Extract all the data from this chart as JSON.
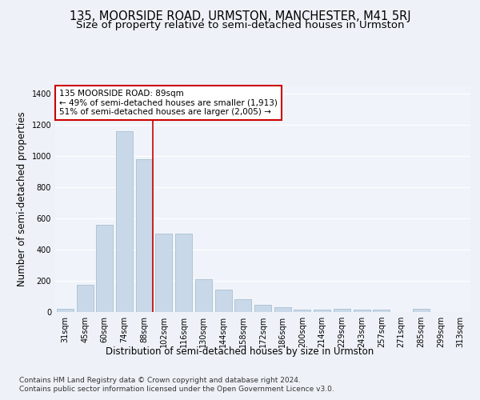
{
  "title": "135, MOORSIDE ROAD, URMSTON, MANCHESTER, M41 5RJ",
  "subtitle": "Size of property relative to semi-detached houses in Urmston",
  "xlabel": "Distribution of semi-detached houses by size in Urmston",
  "ylabel": "Number of semi-detached properties",
  "footer_line1": "Contains HM Land Registry data © Crown copyright and database right 2024.",
  "footer_line2": "Contains public sector information licensed under the Open Government Licence v3.0.",
  "categories": [
    "31sqm",
    "45sqm",
    "60sqm",
    "74sqm",
    "88sqm",
    "102sqm",
    "116sqm",
    "130sqm",
    "144sqm",
    "158sqm",
    "172sqm",
    "186sqm",
    "200sqm",
    "214sqm",
    "229sqm",
    "243sqm",
    "257sqm",
    "271sqm",
    "285sqm",
    "299sqm",
    "313sqm"
  ],
  "values": [
    20,
    175,
    560,
    1160,
    980,
    505,
    505,
    210,
    145,
    80,
    45,
    30,
    15,
    15,
    20,
    15,
    15,
    0,
    20,
    0,
    0
  ],
  "bar_color": "#c8d8e8",
  "bar_edge_color": "#a0b8cc",
  "highlight_index": 4,
  "highlight_line_color": "#cc0000",
  "annotation_text": "135 MOORSIDE ROAD: 89sqm\n← 49% of semi-detached houses are smaller (1,913)\n51% of semi-detached houses are larger (2,005) →",
  "annotation_box_color": "#ffffff",
  "annotation_box_edge_color": "#cc0000",
  "ylim": [
    0,
    1450
  ],
  "yticks": [
    0,
    200,
    400,
    600,
    800,
    1000,
    1200,
    1400
  ],
  "bg_color": "#eef2f8",
  "plot_bg_color": "#f0f4fa",
  "grid_color": "#ffffff",
  "title_fontsize": 10.5,
  "subtitle_fontsize": 9.5,
  "axis_label_fontsize": 8.5,
  "tick_fontsize": 7,
  "annotation_fontsize": 7.5,
  "footer_fontsize": 6.5
}
